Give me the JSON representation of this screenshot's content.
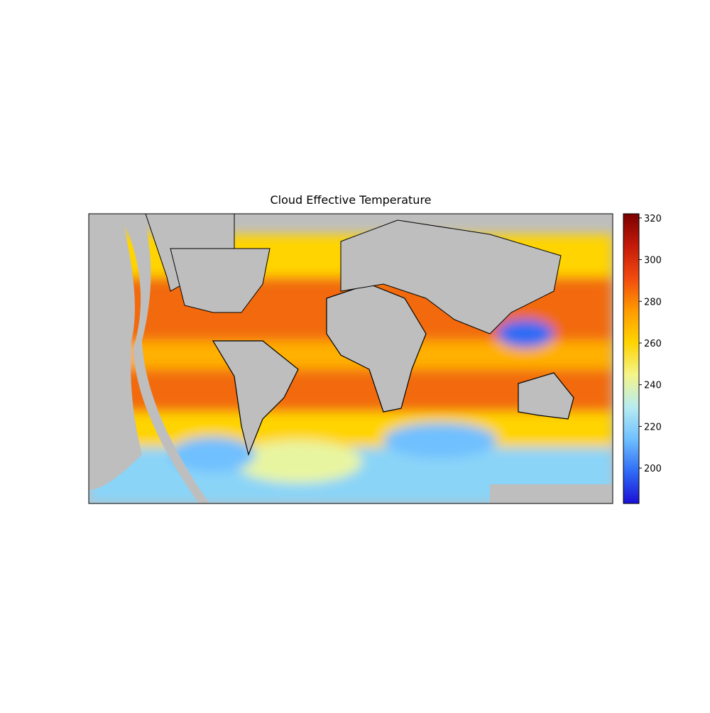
{
  "chart_data": {
    "type": "map",
    "title": "Cloud Effective Temperature",
    "colorbar": {
      "lim": [
        183,
        322
      ],
      "ticks": [
        200,
        220,
        240,
        260,
        280,
        300,
        320
      ],
      "colormap": [
        "#1a0fd6",
        "#2f6cf5",
        "#6fc0ff",
        "#b8ecf0",
        "#f4f48a",
        "#ffd400",
        "#ff9a00",
        "#f24a10",
        "#c41a0a",
        "#7a0000"
      ]
    }
  }
}
